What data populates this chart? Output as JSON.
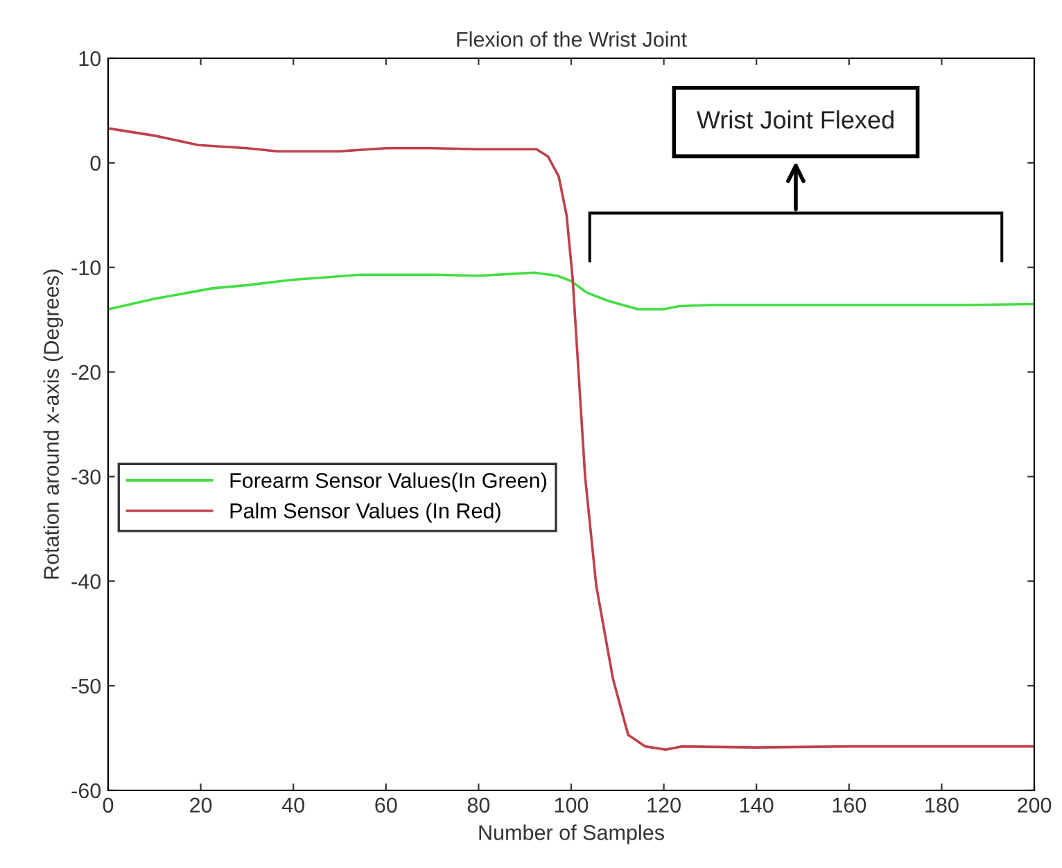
{
  "chart_data": {
    "type": "line",
    "title": "Flexion of the Wrist Joint",
    "xlabel": "Number of Samples",
    "ylabel": "Rotation around x-axis (Degrees)",
    "xlim": [
      0,
      200
    ],
    "ylim": [
      -60,
      10
    ],
    "xticks": [
      0,
      20,
      40,
      60,
      80,
      100,
      120,
      140,
      160,
      180,
      200
    ],
    "yticks": [
      -60,
      -50,
      -40,
      -30,
      -20,
      -10,
      0,
      10
    ],
    "grid": false,
    "legend": "left",
    "marker": "none",
    "line_style": "solid",
    "annotations": [
      "Wrist Joint Flexed"
    ],
    "series": [
      {
        "name": "Forearm Sensor Values(In Green)",
        "color": "#44dd44",
        "x": [
          0,
          10,
          22.5,
          30,
          39.5,
          54.5,
          70,
          80,
          92,
          97,
          100,
          103.3,
          108,
          114.4,
          120,
          123.4,
          130,
          150,
          170,
          185,
          200
        ],
        "values": [
          -14,
          -13,
          -12,
          -11.7,
          -11.2,
          -10.7,
          -10.7,
          -10.8,
          -10.5,
          -10.8,
          -11.3,
          -12.4,
          -13.2,
          -14,
          -14,
          -13.7,
          -13.6,
          -13.6,
          -13.6,
          -13.6,
          -13.5
        ]
      },
      {
        "name": "Palm Sensor Values (In Red)",
        "color": "#c0404a",
        "x": [
          0,
          10,
          19.5,
          30,
          36.5,
          50,
          60,
          70,
          80,
          92.5,
          95,
          97.3,
          99,
          100.3,
          103,
          105.4,
          109,
          112.3,
          116,
          120.4,
          124,
          140,
          160,
          180,
          200
        ],
        "values": [
          3.3,
          2.6,
          1.7,
          1.4,
          1.1,
          1.1,
          1.4,
          1.4,
          1.3,
          1.3,
          0.6,
          -1.3,
          -5,
          -11,
          -30,
          -40.4,
          -49.3,
          -54.7,
          -55.8,
          -56.1,
          -55.8,
          -55.9,
          -55.8,
          -55.8,
          -55.8
        ]
      }
    ]
  }
}
